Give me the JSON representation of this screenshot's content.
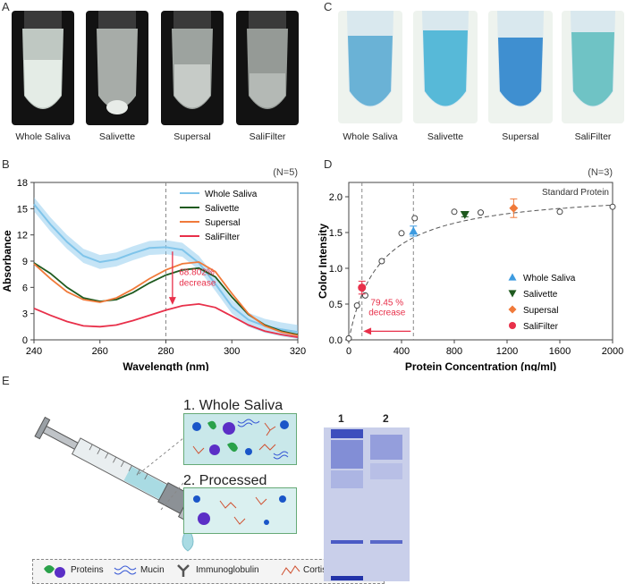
{
  "panels": {
    "A": "A",
    "B": "B",
    "C": "C",
    "D": "D",
    "E": "E"
  },
  "panel_a": {
    "captions": [
      "Whole Saliva",
      "Salivette",
      "Supersal",
      "SaliFilter"
    ]
  },
  "panel_c": {
    "captions": [
      "Whole Saliva",
      "Salivette",
      "Supersal",
      "SaliFilter"
    ]
  },
  "panel_b": {
    "n_label": "(N=5)",
    "annotation": [
      "68.802%",
      "decrease"
    ]
  },
  "panel_d": {
    "n_label": "(N=3)",
    "std_label": "Standard Protein",
    "annotation": [
      "79.45 %",
      "decrease"
    ]
  },
  "panel_e": {
    "box1_title": "1. Whole Saliva",
    "box2_title": "2. Processed Saliva",
    "lane1": "1",
    "lane2": "2",
    "legend": [
      "Proteins",
      "Mucin",
      "Immunoglobulin",
      "Cortisol"
    ]
  },
  "colors": {
    "whole": "#7fc4ea",
    "salivette": "#1f5a1f",
    "supersal": "#f07a3a",
    "salifilter": "#e8304a",
    "blue_tri": "#3d9be0"
  },
  "chart_data": [
    {
      "type": "line",
      "title": "",
      "xlabel": "Wavelength (nm)",
      "ylabel": "Absorbance",
      "xlim": [
        240,
        320
      ],
      "ylim": [
        0,
        18
      ],
      "xticks": [
        240,
        260,
        280,
        300,
        320
      ],
      "yticks": [
        0,
        3,
        6,
        9,
        12,
        15,
        18
      ],
      "legend_position": "top-right",
      "x": [
        240,
        245,
        250,
        255,
        260,
        265,
        270,
        275,
        280,
        285,
        290,
        295,
        300,
        305,
        310,
        315,
        320
      ],
      "series": [
        {
          "name": "Whole Saliva",
          "values": [
            15.5,
            13.2,
            11.2,
            9.6,
            8.9,
            9.2,
            9.9,
            10.5,
            10.6,
            10.3,
            8.8,
            6.4,
            3.8,
            2.3,
            1.6,
            1.2,
            0.9
          ]
        },
        {
          "name": "Salivette",
          "values": [
            8.8,
            7.6,
            6.0,
            4.8,
            4.4,
            4.6,
            5.4,
            6.5,
            7.4,
            8.0,
            8.2,
            7.2,
            4.9,
            2.9,
            1.7,
            1.0,
            0.6
          ]
        },
        {
          "name": "Supersal",
          "values": [
            8.7,
            7.0,
            5.5,
            4.6,
            4.3,
            4.8,
            5.8,
            7.0,
            8.0,
            8.7,
            8.9,
            7.8,
            5.3,
            3.0,
            1.6,
            0.9,
            0.5
          ]
        },
        {
          "name": "SaliFilter",
          "values": [
            3.6,
            2.8,
            2.1,
            1.6,
            1.5,
            1.7,
            2.2,
            2.8,
            3.4,
            3.9,
            4.1,
            3.7,
            2.7,
            1.7,
            1.0,
            0.6,
            0.3
          ]
        }
      ],
      "annotation": "68.802% decrease",
      "reference_x": 280
    },
    {
      "type": "scatter",
      "title": "",
      "xlabel": "Protein Concentration (ng/ml)",
      "ylabel": "Color Intensity",
      "xlim": [
        0,
        2000
      ],
      "ylim": [
        0,
        2.2
      ],
      "xticks": [
        0,
        400,
        800,
        1200,
        1600,
        2000
      ],
      "yticks": [
        0.0,
        0.5,
        1.0,
        1.5,
        2.0
      ],
      "legend_position": "bottom-right",
      "series": [
        {
          "name": "Standard Protein",
          "x": [
            0,
            62.5,
            125,
            250,
            400,
            500,
            800,
            1000,
            1600,
            2000
          ],
          "y": [
            0.02,
            0.48,
            0.62,
            1.1,
            1.49,
            1.7,
            1.79,
            1.78,
            1.79,
            1.86
          ]
        },
        {
          "name": "Whole Saliva",
          "x": [
            490
          ],
          "y": [
            1.52
          ],
          "err": 0.07
        },
        {
          "name": "Salivette",
          "x": [
            880
          ],
          "y": [
            1.75
          ],
          "err": 0.03
        },
        {
          "name": "Supersal",
          "x": [
            1250
          ],
          "y": [
            1.84
          ],
          "err": 0.13
        },
        {
          "name": "SaliFilter",
          "x": [
            100
          ],
          "y": [
            0.73
          ],
          "err": 0.09
        }
      ],
      "reference_x": [
        100,
        490
      ],
      "annotation": "79.45 % decrease"
    }
  ]
}
